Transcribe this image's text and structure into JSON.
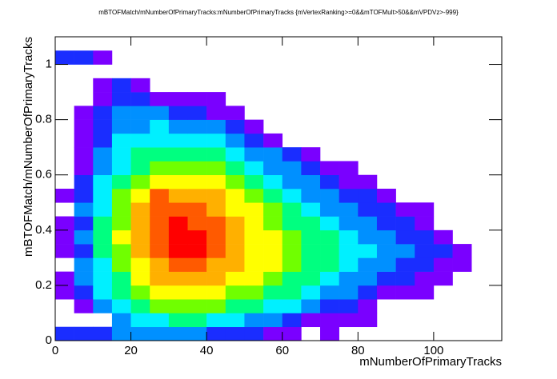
{
  "chart_data": {
    "type": "heatmap",
    "title": "mBTOFMatch/mNumberOfPrimaryTracks:mNumberOfPrimaryTracks {mVertexRanking>=0&&mTOFMult>50&&mVPDVz>-999}",
    "x_label": "mNumberOfPrimaryTracks",
    "y_label": "mBTOFMatch/mNumberOfPrimaryTracks",
    "xlim": [
      0,
      118
    ],
    "ylim": [
      0,
      1.1
    ],
    "xticks": [
      0,
      20,
      40,
      60,
      80,
      100
    ],
    "yticks": [
      0,
      0.2,
      0.4,
      0.6,
      0.8,
      1
    ],
    "x_bins": [
      0,
      5,
      10,
      15,
      20,
      25,
      30,
      35,
      40,
      45,
      50,
      55,
      60,
      65,
      70,
      75,
      80,
      85,
      90,
      95,
      100,
      105,
      110,
      115
    ],
    "y_bins": [
      0,
      0.05,
      0.1,
      0.15,
      0.2,
      0.25,
      0.3,
      0.35,
      0.4,
      0.45,
      0.5,
      0.55,
      0.6,
      0.65,
      0.7,
      0.75,
      0.8,
      0.85,
      0.9,
      0.95,
      1,
      1.05,
      1.1
    ],
    "colors": [
      "#7a00ff",
      "#1a2dff",
      "#0090ff",
      "#00f0ff",
      "#00ff80",
      "#70ff00",
      "#ffff00",
      "#ffb000",
      "#ff5a00",
      "#ff0000"
    ],
    "z": [
      [
        2,
        2,
        2,
        3,
        3,
        3,
        3,
        3,
        2,
        2,
        2,
        1,
        1,
        0,
        1,
        0,
        0,
        0,
        0,
        0,
        0,
        0,
        0
      ],
      [
        0,
        0,
        0,
        3,
        4,
        4,
        5,
        5,
        4,
        4,
        3,
        3,
        2,
        1,
        1,
        1,
        1,
        0,
        0,
        0,
        0,
        0,
        0
      ],
      [
        0,
        1,
        3,
        4,
        5,
        6,
        6,
        6,
        6,
        5,
        5,
        4,
        4,
        3,
        2,
        2,
        1,
        0,
        0,
        0,
        0,
        0,
        0
      ],
      [
        1,
        2,
        4,
        5,
        6,
        7,
        7,
        7,
        7,
        6,
        6,
        5,
        5,
        4,
        3,
        3,
        2,
        1,
        1,
        1,
        0,
        0,
        0
      ],
      [
        1,
        3,
        4,
        5,
        7,
        8,
        8,
        8,
        8,
        7,
        7,
        6,
        5,
        5,
        4,
        3,
        3,
        2,
        2,
        1,
        1,
        0,
        0
      ],
      [
        0,
        3,
        4,
        6,
        7,
        8,
        9,
        9,
        8,
        8,
        7,
        7,
        6,
        5,
        5,
        4,
        3,
        3,
        2,
        2,
        1,
        1,
        0
      ],
      [
        1,
        2,
        5,
        6,
        8,
        9,
        10,
        10,
        9,
        8,
        7,
        7,
        6,
        5,
        5,
        4,
        4,
        3,
        3,
        2,
        2,
        1,
        0
      ],
      [
        1,
        3,
        5,
        7,
        8,
        9,
        10,
        10,
        9,
        8,
        7,
        7,
        6,
        5,
        5,
        4,
        3,
        3,
        2,
        2,
        1,
        0,
        0
      ],
      [
        1,
        2,
        5,
        6,
        8,
        9,
        10,
        9,
        9,
        8,
        7,
        6,
        5,
        5,
        4,
        3,
        3,
        2,
        2,
        1,
        0,
        0,
        0
      ],
      [
        0,
        3,
        4,
        6,
        8,
        9,
        9,
        9,
        8,
        7,
        7,
        6,
        5,
        4,
        3,
        3,
        2,
        2,
        1,
        1,
        0,
        0,
        0
      ],
      [
        1,
        2,
        4,
        6,
        7,
        9,
        8,
        8,
        8,
        7,
        6,
        5,
        4,
        3,
        3,
        2,
        2,
        1,
        0,
        0,
        0,
        0,
        0
      ],
      [
        0,
        2,
        4,
        5,
        6,
        7,
        7,
        7,
        7,
        6,
        5,
        4,
        3,
        3,
        2,
        1,
        1,
        0,
        0,
        0,
        0,
        0,
        0
      ],
      [
        0,
        1,
        3,
        4,
        5,
        6,
        6,
        6,
        6,
        5,
        4,
        3,
        3,
        2,
        1,
        1,
        0,
        0,
        0,
        0,
        0,
        0,
        0
      ],
      [
        0,
        1,
        3,
        4,
        5,
        5,
        5,
        5,
        5,
        4,
        3,
        3,
        2,
        1,
        0,
        0,
        0,
        0,
        0,
        0,
        0,
        0,
        0
      ],
      [
        0,
        1,
        2,
        4,
        4,
        4,
        4,
        4,
        4,
        3,
        2,
        1,
        0,
        0,
        0,
        0,
        0,
        0,
        0,
        0,
        0,
        0,
        0
      ],
      [
        0,
        1,
        2,
        3,
        3,
        4,
        3,
        3,
        3,
        2,
        1,
        0,
        0,
        0,
        0,
        0,
        0,
        0,
        0,
        0,
        0,
        0,
        0
      ],
      [
        0,
        1,
        2,
        3,
        3,
        3,
        2,
        2,
        1,
        1,
        0,
        0,
        0,
        0,
        0,
        0,
        0,
        0,
        0,
        0,
        0,
        0,
        0
      ],
      [
        0,
        0,
        1,
        2,
        2,
        1,
        1,
        1,
        1,
        0,
        0,
        0,
        0,
        0,
        0,
        0,
        0,
        0,
        0,
        0,
        0,
        0,
        0
      ],
      [
        0,
        0,
        1,
        2,
        1,
        0,
        0,
        0,
        0,
        0,
        0,
        0,
        0,
        0,
        0,
        0,
        0,
        0,
        0,
        0,
        0,
        0,
        0
      ],
      [
        0,
        0,
        0,
        0,
        0,
        0,
        0,
        0,
        0,
        0,
        0,
        0,
        0,
        0,
        0,
        0,
        0,
        0,
        0,
        0,
        0,
        0,
        0
      ],
      [
        2,
        2,
        1,
        0,
        0,
        0,
        0,
        0,
        0,
        0,
        0,
        0,
        0,
        0,
        0,
        0,
        0,
        0,
        0,
        0,
        0,
        0,
        0
      ],
      [
        0,
        0,
        0,
        0,
        0,
        0,
        0,
        0,
        0,
        0,
        0,
        0,
        0,
        0,
        0,
        0,
        0,
        0,
        0,
        0,
        0,
        0,
        0
      ]
    ]
  }
}
